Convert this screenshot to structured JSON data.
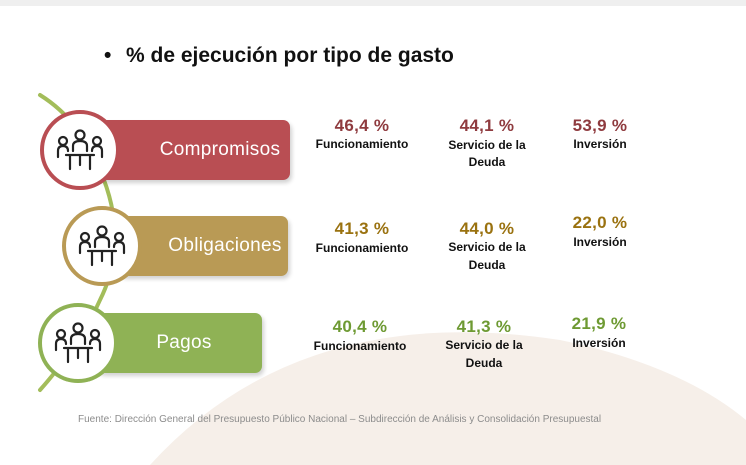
{
  "heading": {
    "bullet": "•",
    "text": "% de ejecución por tipo de gasto"
  },
  "colors": {
    "compromisos": "#b94e53",
    "obligaciones": "#b99a55",
    "pagos": "#8fb255",
    "compromisos_text": "#8f3b3f",
    "obligaciones_text": "#9a7210",
    "pagos_text": "#6e9a33",
    "stem": "#a3bd5a",
    "arc": "#f6efe9"
  },
  "rows": [
    {
      "label": "Compromisos",
      "icon": "people-meeting-icon",
      "funcionamiento_pct": "46,4 %",
      "funcionamiento_label": "Funcionamiento",
      "deuda_pct": "44,1 %",
      "deuda_label_1": "Servicio de la",
      "deuda_label_2": "Deuda",
      "inversion_pct": "53,9 %",
      "inversion_label": "Inversión"
    },
    {
      "label": "Obligaciones",
      "icon": "people-meeting-icon",
      "funcionamiento_pct": "41,3 %",
      "funcionamiento_label": "Funcionamiento",
      "deuda_pct": "44,0 %",
      "deuda_label_1": "Servicio de la",
      "deuda_label_2": "Deuda",
      "inversion_pct": "22,0 %",
      "inversion_label": "Inversión"
    },
    {
      "label": "Pagos",
      "icon": "people-meeting-icon",
      "funcionamiento_pct": "40,4 %",
      "funcionamiento_label": "Funcionamiento",
      "deuda_pct": "41,3 %",
      "deuda_label_1": "Servicio de la",
      "deuda_label_2": "Deuda",
      "inversion_pct": "21,9 %",
      "inversion_label": "Inversión"
    }
  ],
  "footer": "Fuente: Dirección General del Presupuesto Público Nacional – Subdirección de Análisis y Consolidación Presupuestal"
}
